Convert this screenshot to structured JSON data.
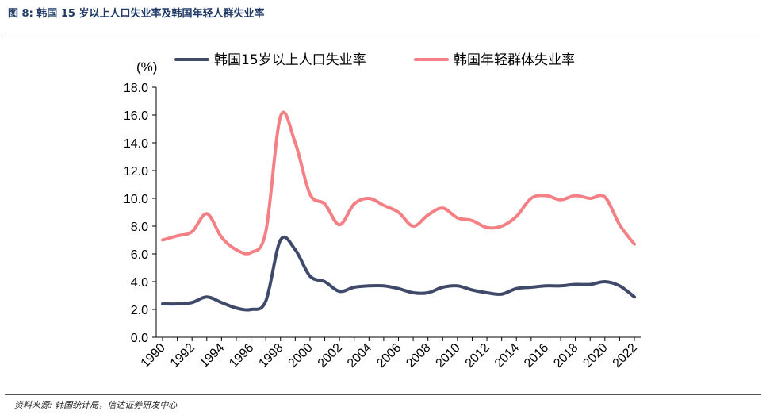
{
  "figure": {
    "title": "图 8:  韩国 15 岁以上人口失业率及韩国年轻人群失业率",
    "source": "资料来源:  韩国统计局，信达证券研发中心"
  },
  "chart_data": {
    "type": "line",
    "ylabel": "(%)",
    "xlabel": "",
    "ylim": [
      0,
      18
    ],
    "yticks": [
      "0.0",
      "2.0",
      "4.0",
      "6.0",
      "8.0",
      "10.0",
      "12.0",
      "14.0",
      "16.0",
      "18.0"
    ],
    "xticks": [
      "1990",
      "1992",
      "1994",
      "1996",
      "1998",
      "2000",
      "2002",
      "2004",
      "2006",
      "2008",
      "2010",
      "2012",
      "2014",
      "2016",
      "2018",
      "2020",
      "2022"
    ],
    "legend_position": "top",
    "grid": false,
    "x": [
      1990,
      1991,
      1992,
      1993,
      1994,
      1995,
      1996,
      1997,
      1998,
      1999,
      2000,
      2001,
      2002,
      2003,
      2004,
      2005,
      2006,
      2007,
      2008,
      2009,
      2010,
      2011,
      2012,
      2013,
      2014,
      2015,
      2016,
      2017,
      2018,
      2019,
      2020,
      2021,
      2022
    ],
    "series": [
      {
        "name": "韩国15岁以上人口失业率",
        "color": "#3f4a6b",
        "values": [
          2.4,
          2.4,
          2.5,
          2.9,
          2.5,
          2.1,
          2.0,
          2.6,
          7.0,
          6.3,
          4.4,
          4.0,
          3.3,
          3.6,
          3.7,
          3.7,
          3.5,
          3.2,
          3.2,
          3.6,
          3.7,
          3.4,
          3.2,
          3.1,
          3.5,
          3.6,
          3.7,
          3.7,
          3.8,
          3.8,
          4.0,
          3.7,
          2.9
        ]
      },
      {
        "name": "韩国年轻群体失业率",
        "color": "#f47f84",
        "values": [
          7.0,
          7.3,
          7.6,
          8.9,
          7.2,
          6.3,
          6.1,
          7.6,
          15.9,
          14.0,
          10.3,
          9.6,
          8.1,
          9.6,
          10.0,
          9.5,
          9.0,
          8.0,
          8.8,
          9.3,
          8.6,
          8.4,
          7.9,
          8.0,
          8.7,
          10.0,
          10.2,
          9.9,
          10.2,
          10.0,
          10.1,
          8.1,
          6.7
        ]
      }
    ]
  }
}
